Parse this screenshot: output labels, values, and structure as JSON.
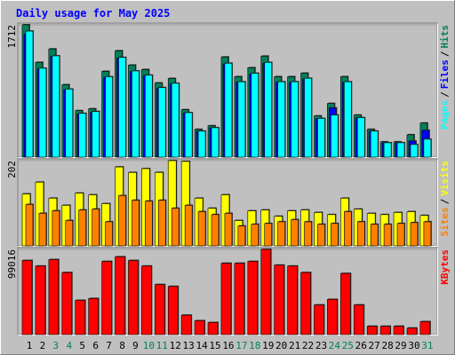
{
  "chart_data": {
    "type": "bar",
    "title": "Daily usage for May 2025",
    "categories": [
      "1",
      "2",
      "3",
      "4",
      "5",
      "6",
      "7",
      "8",
      "9",
      "10",
      "11",
      "12",
      "13",
      "14",
      "15",
      "16",
      "17",
      "18",
      "19",
      "20",
      "21",
      "22",
      "23",
      "24",
      "25",
      "26",
      "27",
      "28",
      "29",
      "30",
      "31"
    ],
    "category_colors": [
      "#000000",
      "#000000",
      "#00805c",
      "#00805c",
      "#000000",
      "#000000",
      "#000000",
      "#000000",
      "#000000",
      "#00805c",
      "#00805c",
      "#000000",
      "#000000",
      "#000000",
      "#000000",
      "#000000",
      "#00805c",
      "#00805c",
      "#000000",
      "#000000",
      "#000000",
      "#000000",
      "#000000",
      "#00805c",
      "#00805c",
      "#000000",
      "#000000",
      "#000000",
      "#000000",
      "#000000",
      "#00805c"
    ],
    "legend_separator": "/",
    "panels": [
      {
        "ylim": [
          0,
          1712
        ],
        "yticks": [
          1712
        ],
        "series": [
          {
            "name": "Hits",
            "color": "#00805c",
            "values": [
              1712,
              1226,
              1400,
              937,
              601,
              625,
              1110,
              1377,
              1191,
              1134,
              960,
              1018,
              613,
              359,
              405,
              1296,
              1041,
              1157,
              1307,
              1041,
              1041,
              1087,
              532,
              694,
              1041,
              544,
              359,
              197,
              197,
              289,
              440
            ]
          },
          {
            "name": "Files",
            "color": "#0000ff",
            "values": [
              1590,
              1140,
              1302,
              871,
              559,
              581,
              1032,
              1281,
              1108,
              1055,
              893,
              947,
              570,
              334,
              377,
              1205,
              968,
              1076,
              1215,
              968,
              968,
              1011,
              495,
              636,
              968,
              506,
              334,
              183,
              183,
              208,
              347
            ]
          },
          {
            "name": "Pages",
            "color": "#00ffff",
            "values": [
              1631,
              1150,
              1310,
              880,
              565,
              590,
              1040,
              1290,
              1115,
              1060,
              900,
              955,
              575,
              336,
              380,
              1215,
              975,
              1085,
              1225,
              975,
              975,
              1020,
              500,
              544,
              975,
              510,
              336,
              185,
              185,
              162,
              231
            ]
          }
        ]
      },
      {
        "ylim": [
          0,
          202
        ],
        "yticks": [
          202
        ],
        "series": [
          {
            "name": "Visits",
            "color": "#ffff00",
            "values": [
              123,
              151,
              113,
              96,
              125,
              121,
              100,
              187,
              174,
              183,
              174,
              202,
              200,
              113,
              89,
              121,
              60,
              83,
              85,
              70,
              83,
              85,
              79,
              74,
              113,
              87,
              77,
              74,
              79,
              81,
              72
            ]
          },
          {
            "name": "Sites",
            "color": "#ff8000",
            "values": [
              98,
              77,
              83,
              60,
              85,
              87,
              57,
              119,
              108,
              106,
              108,
              89,
              96,
              81,
              74,
              77,
              47,
              51,
              53,
              57,
              62,
              57,
              51,
              53,
              81,
              57,
              51,
              51,
              53,
              55,
              57
            ]
          }
        ]
      },
      {
        "ylim": [
          0,
          99016
        ],
        "yticks": [
          99016
        ],
        "series": [
          {
            "name": "KBytes",
            "color": "#ff0000",
            "values": [
              86101,
              79643,
              87177,
              72110,
              39822,
              41974,
              85025,
              90406,
              86101,
              79643,
              58118,
              55966,
              22602,
              16144,
              13991,
              82873,
              82873,
              85025,
              99016,
              80720,
              79643,
              72110,
              34440,
              40898,
              71034,
              34440,
              9686,
              9686,
              9686,
              7534,
              15068
            ]
          }
        ]
      }
    ]
  }
}
